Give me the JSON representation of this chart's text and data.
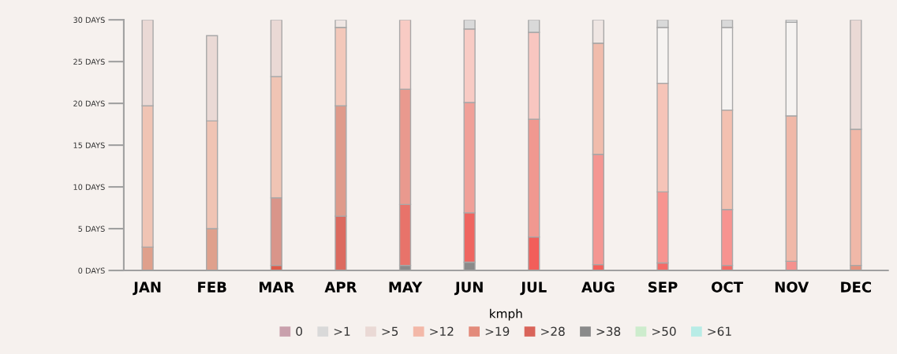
{
  "chart_data": {
    "type": "bar",
    "stacked": true,
    "categories": [
      "JAN",
      "FEB",
      "MAR",
      "APR",
      "MAY",
      "JUN",
      "JUL",
      "AUG",
      "SEP",
      "OCT",
      "NOV",
      "DEC"
    ],
    "ylim": [
      0,
      30
    ],
    "yticks": [
      {
        "value": 0,
        "label": "0 DAYS"
      },
      {
        "value": 5,
        "label": "5 DAYS"
      },
      {
        "value": 10,
        "label": "10 DAYS"
      },
      {
        "value": 15,
        "label": "15 DAYS"
      },
      {
        "value": 20,
        "label": "20 DAYS"
      },
      {
        "value": 25,
        "label": "25 DAYS"
      },
      {
        "value": 30,
        "label": "30 DAYS"
      }
    ],
    "legend": "bottom",
    "legend_title": "kmph",
    "grid": false,
    "series": [
      {
        "name": ">61",
        "color": "#b8ece6",
        "values": [
          null,
          null,
          null,
          null,
          null,
          null,
          null,
          null,
          null,
          null,
          null,
          null
        ]
      },
      {
        "name": ">50",
        "color": "#cdeccd",
        "values": [
          null,
          null,
          null,
          null,
          null,
          null,
          null,
          null,
          null,
          null,
          null,
          null
        ]
      },
      {
        "name": ">38",
        "color": "#8a8a8a",
        "values": [
          null,
          null,
          null,
          null,
          0.6,
          1.0,
          null,
          null,
          null,
          null,
          null,
          null
        ]
      },
      {
        "name": ">28",
        "color": "#d9645a",
        "values": [
          null,
          null,
          0.6,
          6.5,
          7.3,
          5.9,
          4.0,
          0.7,
          0.9,
          0.6,
          null,
          null
        ],
        "colors": [
          "#d9645a",
          "#d9645a",
          "#df5a48",
          "#dc6a5f",
          "#e8736a",
          "#ef6560",
          "#f25e5a",
          "#f5605a",
          "#f56a66",
          "#f56a66",
          "#f56a66",
          "#f56a66"
        ]
      },
      {
        "name": ">19",
        "color": "#e38b7b",
        "values": [
          2.8,
          5.0,
          8.1,
          13.2,
          13.8,
          13.2,
          14.1,
          13.2,
          8.5,
          6.7,
          1.1,
          0.6
        ],
        "colors": [
          "#dfa08c",
          "#dfa08c",
          "#d9958a",
          "#df9a8a",
          "#e9998e",
          "#f0a098",
          "#f09890",
          "#f49692",
          "#f79490",
          "#f79390",
          "#f5918e",
          "#e5937f"
        ]
      },
      {
        "name": ">12",
        "color": "#f3b8a8",
        "values": [
          16.9,
          12.9,
          14.5,
          9.4,
          8.3,
          8.8,
          10.4,
          13.3,
          13.0,
          11.9,
          17.4,
          16.3
        ],
        "colors": [
          "#f0c4b4",
          "#f0c4b4",
          "#f0c4b4",
          "#f3c8ba",
          "#f8cbc4",
          "#f8cbc4",
          "#f8c6c0",
          "#f0bcac",
          "#f6c4b8",
          "#f3c0b0",
          "#f0b8a8",
          "#f0b8a8"
        ]
      },
      {
        "name": ">5",
        "color": "#ead9d5",
        "values": [
          10.3,
          10.2,
          6.8,
          0.9,
          null,
          null,
          null,
          2.8,
          6.7,
          9.9,
          11.2,
          13.1
        ],
        "colors": [
          "#ead9d5",
          "#ead9d5",
          "#ead9d5",
          "#efe6e3",
          "#f3eeeb",
          "#f3eeeb",
          "#f3eeeb",
          "#efe6e3",
          "#f6f3f1",
          "#f6f3f1",
          "#f6f3f1",
          "#ead9d5"
        ]
      },
      {
        "name": ">1",
        "color": "#d9d9d9",
        "values": [
          null,
          null,
          null,
          null,
          null,
          1.1,
          1.5,
          null,
          0.9,
          0.9,
          0.3,
          null
        ]
      },
      {
        "name": "0",
        "color": "#c9a0ac",
        "values": [
          null,
          null,
          null,
          null,
          null,
          null,
          null,
          null,
          null,
          null,
          null,
          null
        ]
      }
    ]
  }
}
